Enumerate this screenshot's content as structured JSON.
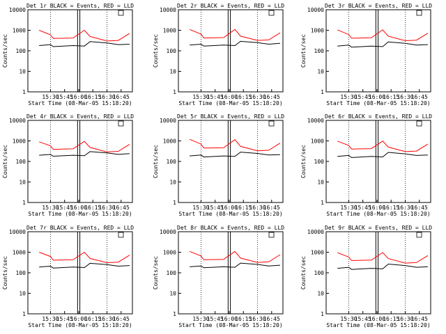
{
  "chart_data": [
    {
      "type": "line",
      "title": "Det 1r BLACK = Events, RED = LLD",
      "xlabel": "Start Time (08-Mar-05 15:18:20)",
      "ylabel": "Counts/sec",
      "x_ticks": [
        "15:30",
        "15:45",
        "16:00",
        "16:15",
        "16:30",
        "16:45"
      ],
      "y_ticks": [
        "1",
        "10",
        "100",
        "1000",
        "10000"
      ],
      "ylim": [
        1,
        10000
      ],
      "y_scale": "log",
      "grid": false,
      "series": [
        {
          "color": "#000000",
          "x": [
            15.3,
            15.5,
            15.55,
            15.9,
            16.1,
            16.2,
            16.5,
            16.7,
            16.9
          ],
          "values": [
            180,
            200,
            160,
            180,
            170,
            280,
            240,
            200,
            210
          ]
        },
        {
          "color": "#ff0000",
          "x": [
            15.3,
            15.5,
            15.55,
            15.9,
            16.1,
            16.2,
            16.5,
            16.7,
            16.9
          ],
          "values": [
            1000,
            600,
            400,
            420,
            1000,
            500,
            300,
            320,
            700
          ]
        }
      ]
    },
    {
      "type": "line",
      "title": "Det 2r BLACK = Events, RED = LLD",
      "xlabel": "Start Time (08-Mar-05 15:18:20)",
      "ylabel": "Counts/sec",
      "x_ticks": [
        "15:30",
        "15:45",
        "16:00",
        "16:15",
        "16:30",
        "16:45"
      ],
      "y_ticks": [
        "1",
        "10",
        "100",
        "1000",
        "10000"
      ],
      "ylim": [
        1,
        10000
      ],
      "y_scale": "log",
      "grid": false,
      "series": [
        {
          "color": "#000000",
          "x": [
            15.3,
            15.5,
            15.55,
            15.9,
            16.1,
            16.2,
            16.5,
            16.7,
            16.9
          ],
          "values": [
            190,
            210,
            170,
            190,
            180,
            290,
            250,
            210,
            230
          ]
        },
        {
          "color": "#ff0000",
          "x": [
            15.3,
            15.5,
            15.55,
            15.9,
            16.1,
            16.2,
            16.5,
            16.7,
            16.9
          ],
          "values": [
            1100,
            650,
            420,
            440,
            1100,
            520,
            320,
            340,
            750
          ]
        }
      ]
    },
    {
      "type": "line",
      "title": "Det 3r BLACK = Events, RED = LLD",
      "xlabel": "Start Time (08-Mar-05 15:18:20)",
      "ylabel": "Counts/sec",
      "x_ticks": [
        "15:30",
        "15:45",
        "16:00",
        "16:15",
        "16:30",
        "16:45"
      ],
      "y_ticks": [
        "1",
        "10",
        "100",
        "1000",
        "10000"
      ],
      "ylim": [
        1,
        10000
      ],
      "y_scale": "log",
      "grid": false,
      "series": [
        {
          "color": "#000000",
          "x": [
            15.3,
            15.5,
            15.55,
            15.9,
            16.1,
            16.2,
            16.5,
            16.7,
            16.9
          ],
          "values": [
            170,
            190,
            150,
            170,
            160,
            270,
            230,
            190,
            200
          ]
        },
        {
          "color": "#ff0000",
          "x": [
            15.3,
            15.5,
            15.55,
            15.9,
            16.1,
            16.2,
            16.5,
            16.7,
            16.9
          ],
          "values": [
            1050,
            620,
            410,
            430,
            1050,
            510,
            310,
            330,
            720
          ]
        }
      ]
    },
    {
      "type": "line",
      "title": "Det 4r BLACK = Events, RED = LLD",
      "xlabel": "Start Time (08-Mar-05 15:18:20)",
      "ylabel": "Counts/sec",
      "x_ticks": [
        "15:30",
        "15:45",
        "16:00",
        "16:15",
        "16:30",
        "16:45"
      ],
      "y_ticks": [
        "1",
        "10",
        "100",
        "1000",
        "10000"
      ],
      "ylim": [
        1,
        10000
      ],
      "y_scale": "log",
      "grid": false,
      "series": [
        {
          "color": "#000000",
          "x": [
            15.3,
            15.5,
            15.55,
            15.9,
            16.1,
            16.2,
            16.5,
            16.7,
            16.9
          ],
          "values": [
            200,
            220,
            180,
            200,
            190,
            300,
            260,
            220,
            240
          ]
        },
        {
          "color": "#ff0000",
          "x": [
            15.3,
            15.5,
            15.55,
            15.9,
            16.1,
            16.2,
            16.5,
            16.7,
            16.9
          ],
          "values": [
            900,
            580,
            390,
            410,
            950,
            480,
            290,
            310,
            680
          ]
        }
      ]
    },
    {
      "type": "line",
      "title": "Det 5r BLACK = Events, RED = LLD",
      "xlabel": "Start Time (08-Mar-05 15:18:20)",
      "ylabel": "Counts/sec",
      "x_ticks": [
        "15:30",
        "15:45",
        "16:00",
        "16:15",
        "16:30",
        "16:45"
      ],
      "y_ticks": [
        "1",
        "10",
        "100",
        "1000",
        "10000"
      ],
      "ylim": [
        1,
        10000
      ],
      "y_scale": "log",
      "grid": false,
      "series": [
        {
          "color": "#000000",
          "x": [
            15.3,
            15.5,
            15.55,
            15.9,
            16.1,
            16.2,
            16.5,
            16.7,
            16.9
          ],
          "values": [
            185,
            205,
            165,
            185,
            175,
            285,
            245,
            205,
            215
          ]
        },
        {
          "color": "#ff0000",
          "x": [
            15.3,
            15.5,
            15.55,
            15.9,
            16.1,
            16.2,
            16.5,
            16.7,
            16.9
          ],
          "values": [
            1200,
            700,
            450,
            460,
            1150,
            540,
            330,
            350,
            780
          ]
        }
      ]
    },
    {
      "type": "line",
      "title": "Det 6r BLACK = Events, RED = LLD",
      "xlabel": "Start Time (08-Mar-05 15:18:20)",
      "ylabel": "Counts/sec",
      "x_ticks": [
        "15:30",
        "15:45",
        "16:00",
        "16:15",
        "16:30",
        "16:45"
      ],
      "y_ticks": [
        "1",
        "10",
        "100",
        "1000",
        "10000"
      ],
      "ylim": [
        1,
        10000
      ],
      "y_scale": "log",
      "grid": false,
      "series": [
        {
          "color": "#000000",
          "x": [
            15.3,
            15.5,
            15.55,
            15.9,
            16.1,
            16.2,
            16.5,
            16.7,
            16.9
          ],
          "values": [
            175,
            195,
            155,
            175,
            165,
            275,
            235,
            195,
            205
          ]
        },
        {
          "color": "#ff0000",
          "x": [
            15.3,
            15.5,
            15.55,
            15.9,
            16.1,
            16.2,
            16.5,
            16.7,
            16.9
          ],
          "values": [
            980,
            600,
            400,
            420,
            980,
            500,
            300,
            320,
            700
          ]
        }
      ]
    },
    {
      "type": "line",
      "title": "Det 7r BLACK = Events, RED = LLD",
      "xlabel": "Start Time (08-Mar-05 15:18:20)",
      "ylabel": "Counts/sec",
      "x_ticks": [
        "15:30",
        "15:45",
        "16:00",
        "16:15",
        "16:30",
        "16:45"
      ],
      "y_ticks": [
        "1",
        "10",
        "100",
        "1000",
        "10000"
      ],
      "ylim": [
        1,
        10000
      ],
      "y_scale": "log",
      "grid": false,
      "series": [
        {
          "color": "#000000",
          "x": [
            15.3,
            15.5,
            15.55,
            15.9,
            16.1,
            16.2,
            16.5,
            16.7,
            16.9
          ],
          "values": [
            190,
            210,
            170,
            190,
            180,
            290,
            250,
            210,
            225
          ]
        },
        {
          "color": "#ff0000",
          "x": [
            15.3,
            15.5,
            15.55,
            15.9,
            16.1,
            16.2,
            16.5,
            16.7,
            16.9
          ],
          "values": [
            1000,
            620,
            410,
            430,
            1000,
            500,
            310,
            330,
            720
          ]
        }
      ]
    },
    {
      "type": "line",
      "title": "Det 8r BLACK = Events, RED = LLD",
      "xlabel": "Start Time (08-Mar-05 15:18:20)",
      "ylabel": "Counts/sec",
      "x_ticks": [
        "15:30",
        "15:45",
        "16:00",
        "16:15",
        "16:30",
        "16:45"
      ],
      "y_ticks": [
        "1",
        "10",
        "100",
        "1000",
        "10000"
      ],
      "ylim": [
        1,
        10000
      ],
      "y_scale": "log",
      "grid": false,
      "series": [
        {
          "color": "#000000",
          "x": [
            15.3,
            15.5,
            15.55,
            15.9,
            16.1,
            16.2,
            16.5,
            16.7,
            16.9
          ],
          "values": [
            195,
            215,
            175,
            195,
            185,
            295,
            255,
            215,
            235
          ]
        },
        {
          "color": "#ff0000",
          "x": [
            15.3,
            15.5,
            15.55,
            15.9,
            16.1,
            16.2,
            16.5,
            16.7,
            16.9
          ],
          "values": [
            1100,
            660,
            430,
            450,
            1100,
            520,
            320,
            340,
            760
          ]
        }
      ]
    },
    {
      "type": "line",
      "title": "Det 9r BLACK = Events, RED = LLD",
      "xlabel": "Start Time (08-Mar-05 15:18:20)",
      "ylabel": "Counts/sec",
      "x_ticks": [
        "15:30",
        "15:45",
        "16:00",
        "16:15",
        "16:30",
        "16:45"
      ],
      "y_ticks": [
        "1",
        "10",
        "100",
        "1000",
        "10000"
      ],
      "ylim": [
        1,
        10000
      ],
      "y_scale": "log",
      "grid": false,
      "series": [
        {
          "color": "#000000",
          "x": [
            15.3,
            15.5,
            15.55,
            15.9,
            16.1,
            16.2,
            16.5,
            16.7,
            16.9
          ],
          "values": [
            165,
            185,
            145,
            165,
            155,
            265,
            225,
            185,
            195
          ]
        },
        {
          "color": "#ff0000",
          "x": [
            15.3,
            15.5,
            15.55,
            15.9,
            16.1,
            16.2,
            16.5,
            16.7,
            16.9
          ],
          "values": [
            950,
            590,
            395,
            415,
            960,
            490,
            295,
            315,
            690
          ]
        }
      ]
    }
  ]
}
